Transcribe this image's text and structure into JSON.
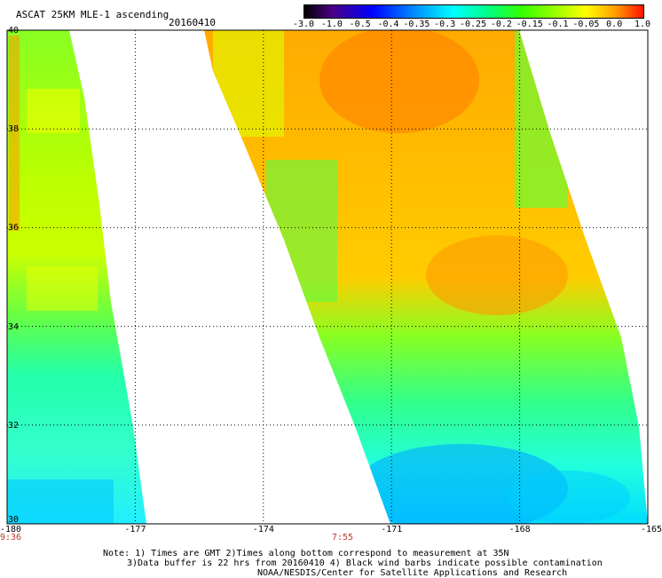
{
  "header": {
    "product": "ASCAT 25KM MLE-1 ascending",
    "date": "20160410"
  },
  "colorbar": {
    "labels": [
      "-3.0",
      "-1.0",
      "-0.5",
      "-0.4",
      "-0.35",
      "-0.3",
      "-0.25",
      "-0.2",
      "-0.15",
      "-0.1",
      "-0.05",
      "0.0",
      "1.0"
    ],
    "colors": [
      "#000000",
      "#4b0082",
      "#1010ff",
      "#0088ff",
      "#00ddff",
      "#00ffcc",
      "#33ff66",
      "#55ff00",
      "#99ff00",
      "#ddff00",
      "#ffee00",
      "#ff9900",
      "#ff2200"
    ]
  },
  "axes": {
    "x_ticks": [
      "-180",
      "-177",
      "-174",
      "-171",
      "-168",
      "-165"
    ],
    "y_ticks": [
      "40",
      "38",
      "36",
      "34",
      "32",
      "30"
    ],
    "lon_range": [
      -180,
      -165
    ],
    "lat_range": [
      30,
      40
    ],
    "grid": "dotted"
  },
  "pass_times": [
    "9:36",
    "7:55"
  ],
  "notes": [
    "Note: 1) Times are GMT 2)Times along bottom correspond to measurement at 35N",
    "3)Data buffer is 22 hrs from 20160410 4) Black wind barbs indicate possible contamination",
    "NOAA/NESDIS/Center for Satellite Applications and Research"
  ]
}
